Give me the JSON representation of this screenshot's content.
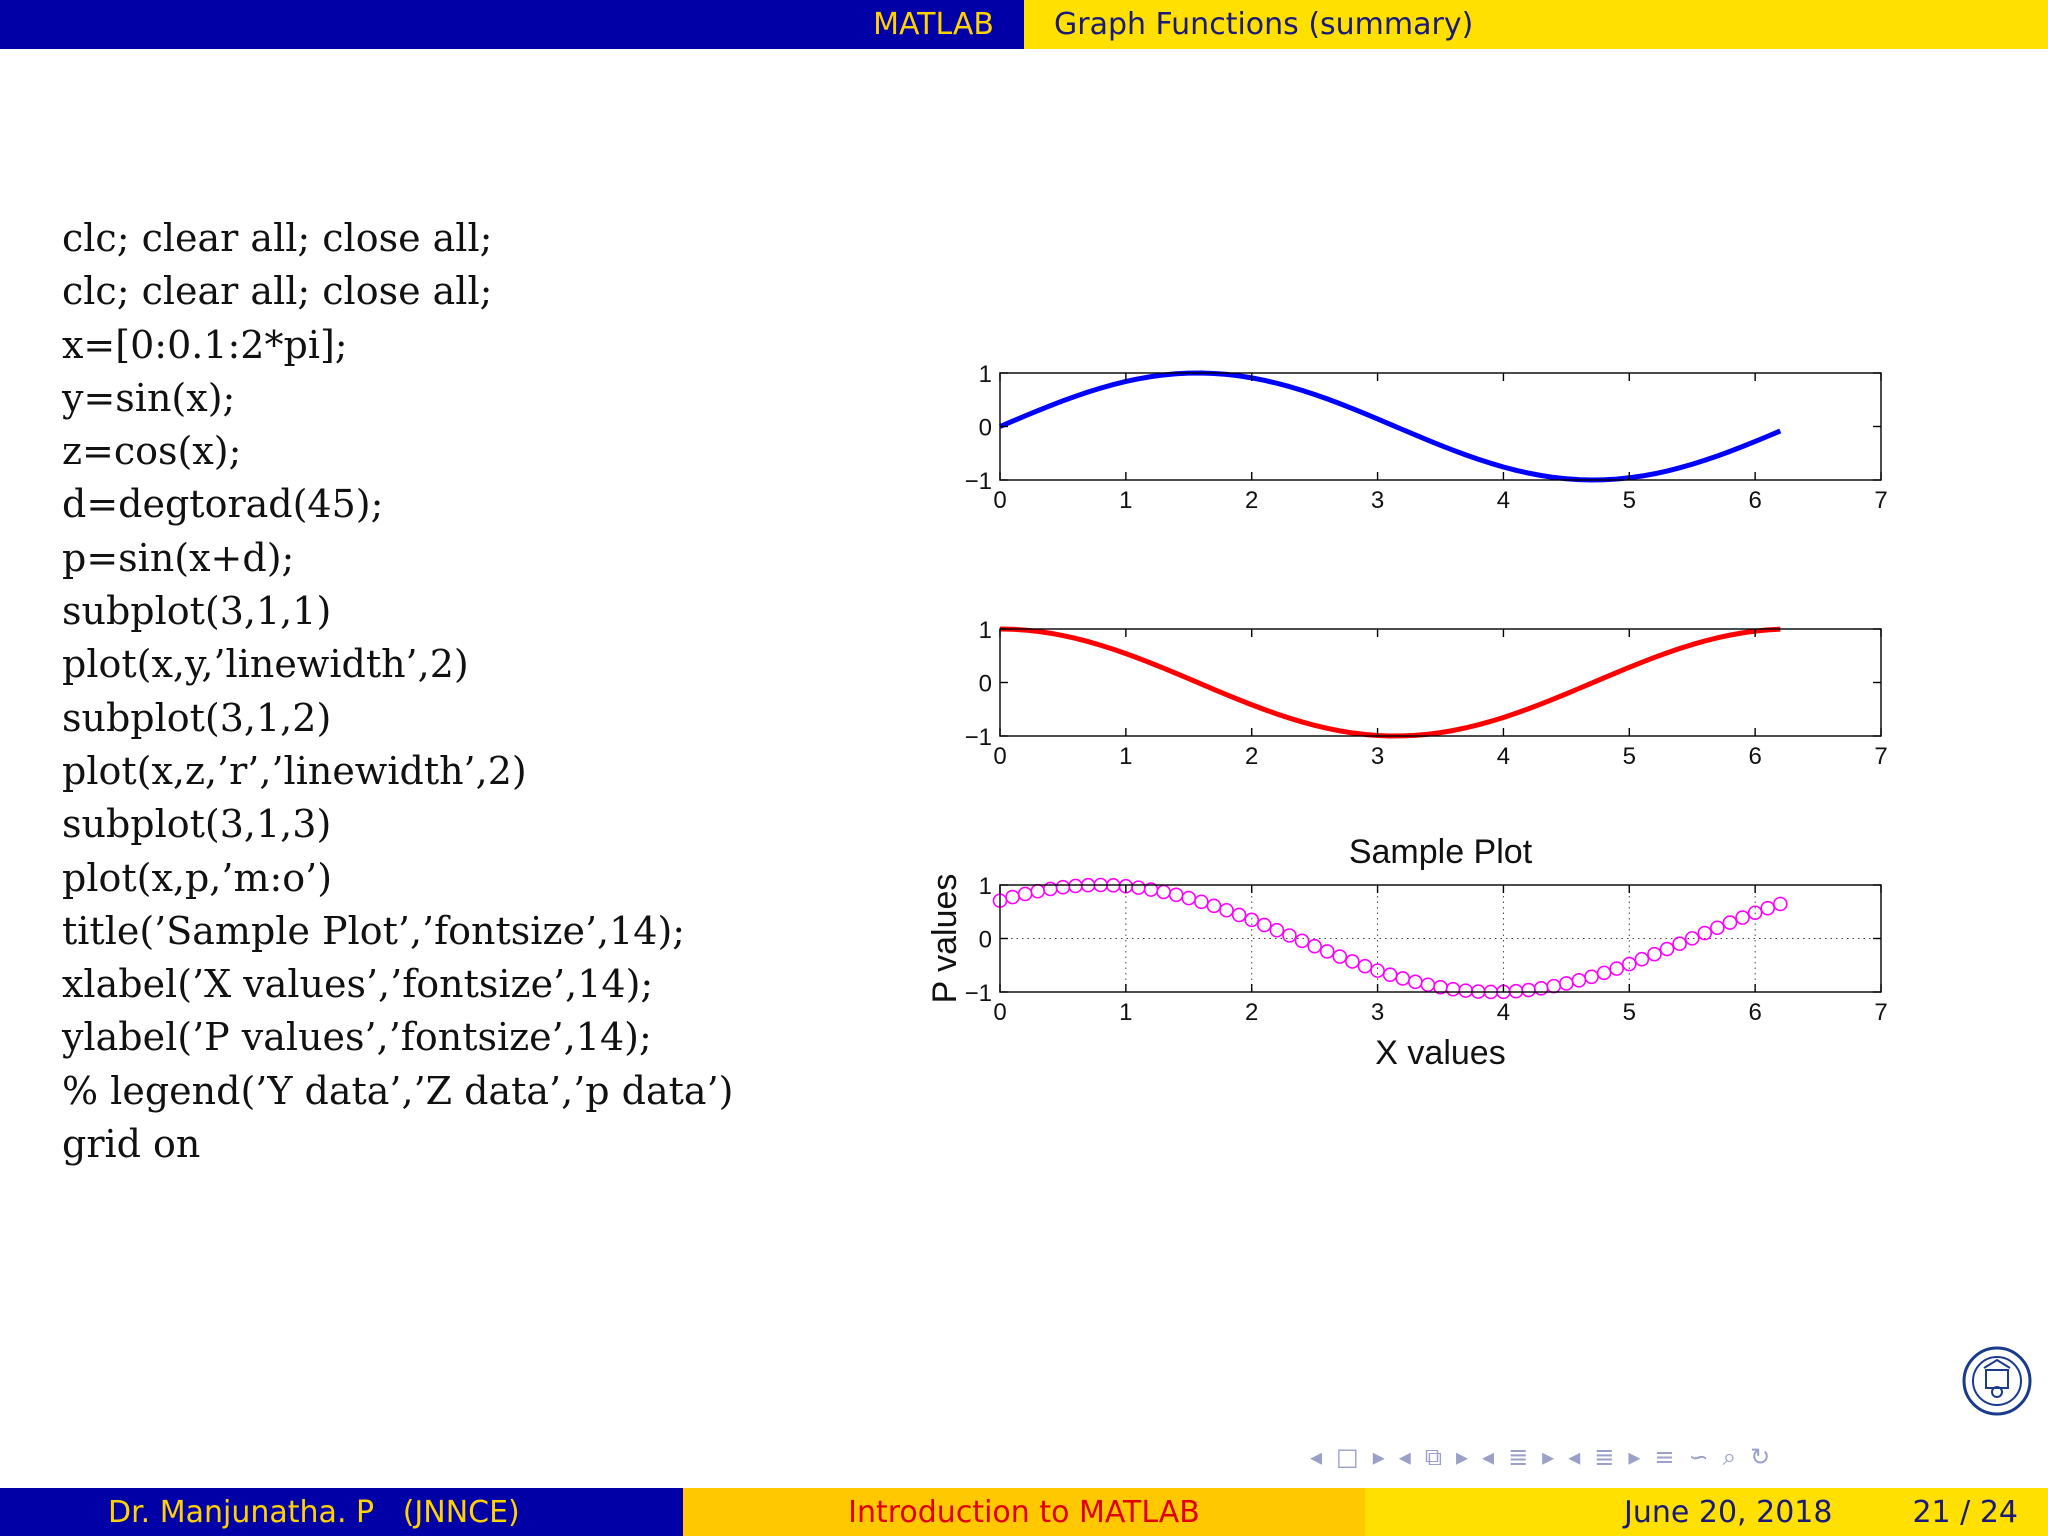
{
  "header": {
    "section": "MATLAB",
    "title": "Graph Functions (summary)"
  },
  "code_lines": [
    "clc; clear all; close all;",
    "clc; clear all; close all;",
    "x=[0:0.1:2*pi];",
    "y=sin(x);",
    "z=cos(x);",
    "d=degtorad(45);",
    "p=sin(x+d);",
    "subplot(3,1,1)",
    "plot(x,y,’linewidth’,2)",
    "subplot(3,1,2)",
    "plot(x,z,’r’,’linewidth’,2)",
    "subplot(3,1,3)",
    "plot(x,p,’m:o’)",
    "title(’Sample Plot’,’fontsize’,14);",
    "xlabel(’X values’,’fontsize’,14);",
    "ylabel(’P values’,’fontsize’,14);",
    "% legend(’Y data’,’Z data’,’p data’)",
    "grid on"
  ],
  "chart_data": [
    {
      "type": "line",
      "x": {
        "start": 0,
        "step": 0.1,
        "end": 6.2
      },
      "function": "sin(x)",
      "color": "#0000ff",
      "marker": "none",
      "grid": false,
      "xlim": [
        0,
        7
      ],
      "ylim": [
        -1,
        1
      ],
      "xticks": [
        "0",
        "1",
        "2",
        "3",
        "4",
        "5",
        "6",
        "7"
      ],
      "yticks": [
        "1",
        "0",
        "−1"
      ],
      "title": "",
      "xlabel": "",
      "ylabel": ""
    },
    {
      "type": "line",
      "x": {
        "start": 0,
        "step": 0.1,
        "end": 6.2
      },
      "function": "cos(x)",
      "color": "#ff0000",
      "marker": "none",
      "grid": false,
      "xlim": [
        0,
        7
      ],
      "ylim": [
        -1,
        1
      ],
      "xticks": [
        "0",
        "1",
        "2",
        "3",
        "4",
        "5",
        "6",
        "7"
      ],
      "yticks": [
        "1",
        "0",
        "−1"
      ],
      "title": "",
      "xlabel": "",
      "ylabel": ""
    },
    {
      "type": "scatter",
      "x": {
        "start": 0,
        "step": 0.1,
        "end": 6.2
      },
      "function": "sin(x+pi/4)",
      "color": "#ff00ff",
      "marker": "circle",
      "grid": true,
      "xlim": [
        0,
        7
      ],
      "ylim": [
        -1,
        1
      ],
      "xticks": [
        "0",
        "1",
        "2",
        "3",
        "4",
        "5",
        "6",
        "7"
      ],
      "yticks": [
        "1",
        "0",
        "−1"
      ],
      "title": "Sample Plot",
      "xlabel": "X values",
      "ylabel": "P values"
    }
  ],
  "nav": {
    "symbols": [
      "◂",
      "□",
      "▸",
      "◂",
      "⧉",
      "▸",
      "◂",
      "≣",
      "▸",
      "◂",
      "≣",
      "▸",
      "≡",
      "∽",
      "⌕",
      "↻"
    ]
  },
  "footer": {
    "author": "Dr. Manjunatha. P   (JNNCE)",
    "course": "Introduction to MATLAB",
    "date": "June 20, 2018",
    "page": "21 / 24"
  }
}
